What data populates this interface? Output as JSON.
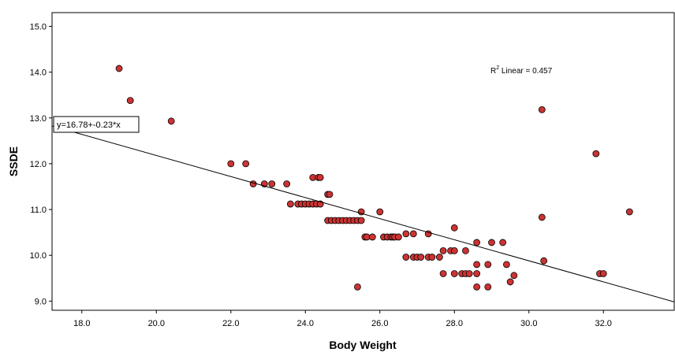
{
  "chart_data": {
    "type": "scatter",
    "xlabel": "Body Weight",
    "ylabel": "SSDE",
    "xlim": [
      17.2,
      33.9
    ],
    "ylim": [
      8.8,
      15.3
    ],
    "x_ticks": [
      "18.0",
      "20.0",
      "22.0",
      "24.0",
      "26.0",
      "28.0",
      "30.0",
      "32.0"
    ],
    "y_ticks": [
      "9.0",
      "10.0",
      "11.0",
      "12.0",
      "13.0",
      "14.0",
      "15.0"
    ],
    "grid": false,
    "annotation": {
      "prefix": "R",
      "superscript": "2",
      "text": " Linear = 0.457"
    },
    "fit_line": {
      "label": "y=16.78+-0.23*x",
      "intercept": 16.78,
      "slope": -0.23
    },
    "marker_color": "#cc3333",
    "points": [
      [
        19.0,
        14.08
      ],
      [
        19.3,
        13.38
      ],
      [
        20.4,
        12.93
      ],
      [
        22.0,
        12.0
      ],
      [
        22.4,
        12.0
      ],
      [
        22.6,
        11.56
      ],
      [
        22.9,
        11.56
      ],
      [
        23.1,
        11.56
      ],
      [
        23.5,
        11.56
      ],
      [
        23.6,
        11.12
      ],
      [
        23.8,
        11.12
      ],
      [
        23.9,
        11.12
      ],
      [
        24.0,
        11.12
      ],
      [
        24.1,
        11.12
      ],
      [
        24.2,
        11.12
      ],
      [
        24.3,
        11.12
      ],
      [
        24.4,
        11.12
      ],
      [
        24.2,
        11.7
      ],
      [
        24.35,
        11.7
      ],
      [
        24.4,
        11.7
      ],
      [
        24.6,
        11.33
      ],
      [
        24.65,
        11.33
      ],
      [
        24.6,
        10.76
      ],
      [
        24.7,
        10.76
      ],
      [
        24.8,
        10.76
      ],
      [
        24.9,
        10.76
      ],
      [
        25.0,
        10.76
      ],
      [
        25.1,
        10.76
      ],
      [
        25.2,
        10.76
      ],
      [
        25.3,
        10.76
      ],
      [
        25.4,
        10.76
      ],
      [
        25.5,
        10.76
      ],
      [
        25.5,
        10.95
      ],
      [
        26.0,
        10.95
      ],
      [
        25.6,
        10.4
      ],
      [
        25.65,
        10.4
      ],
      [
        25.8,
        10.4
      ],
      [
        26.1,
        10.4
      ],
      [
        26.2,
        10.4
      ],
      [
        26.3,
        10.4
      ],
      [
        26.35,
        10.4
      ],
      [
        26.4,
        10.4
      ],
      [
        26.5,
        10.4
      ],
      [
        25.4,
        9.31
      ],
      [
        26.7,
        10.47
      ],
      [
        26.9,
        10.47
      ],
      [
        27.3,
        10.47
      ],
      [
        26.7,
        9.96
      ],
      [
        26.9,
        9.96
      ],
      [
        27.0,
        9.96
      ],
      [
        27.1,
        9.96
      ],
      [
        27.3,
        9.96
      ],
      [
        27.4,
        9.96
      ],
      [
        27.6,
        9.96
      ],
      [
        27.7,
        10.1
      ],
      [
        27.9,
        10.1
      ],
      [
        28.0,
        10.1
      ],
      [
        28.3,
        10.1
      ],
      [
        27.7,
        9.6
      ],
      [
        28.0,
        9.6
      ],
      [
        28.2,
        9.6
      ],
      [
        28.3,
        9.6
      ],
      [
        28.4,
        9.6
      ],
      [
        28.6,
        9.6
      ],
      [
        28.0,
        10.6
      ],
      [
        28.6,
        10.28
      ],
      [
        29.0,
        10.28
      ],
      [
        29.3,
        10.28
      ],
      [
        28.6,
        9.8
      ],
      [
        28.9,
        9.8
      ],
      [
        29.4,
        9.8
      ],
      [
        28.6,
        9.31
      ],
      [
        28.9,
        9.31
      ],
      [
        29.5,
        9.42
      ],
      [
        29.6,
        9.56
      ],
      [
        30.35,
        13.18
      ],
      [
        30.35,
        10.83
      ],
      [
        30.4,
        9.88
      ],
      [
        31.8,
        12.22
      ],
      [
        31.9,
        9.6
      ],
      [
        32.0,
        9.6
      ],
      [
        32.7,
        10.95
      ]
    ]
  }
}
